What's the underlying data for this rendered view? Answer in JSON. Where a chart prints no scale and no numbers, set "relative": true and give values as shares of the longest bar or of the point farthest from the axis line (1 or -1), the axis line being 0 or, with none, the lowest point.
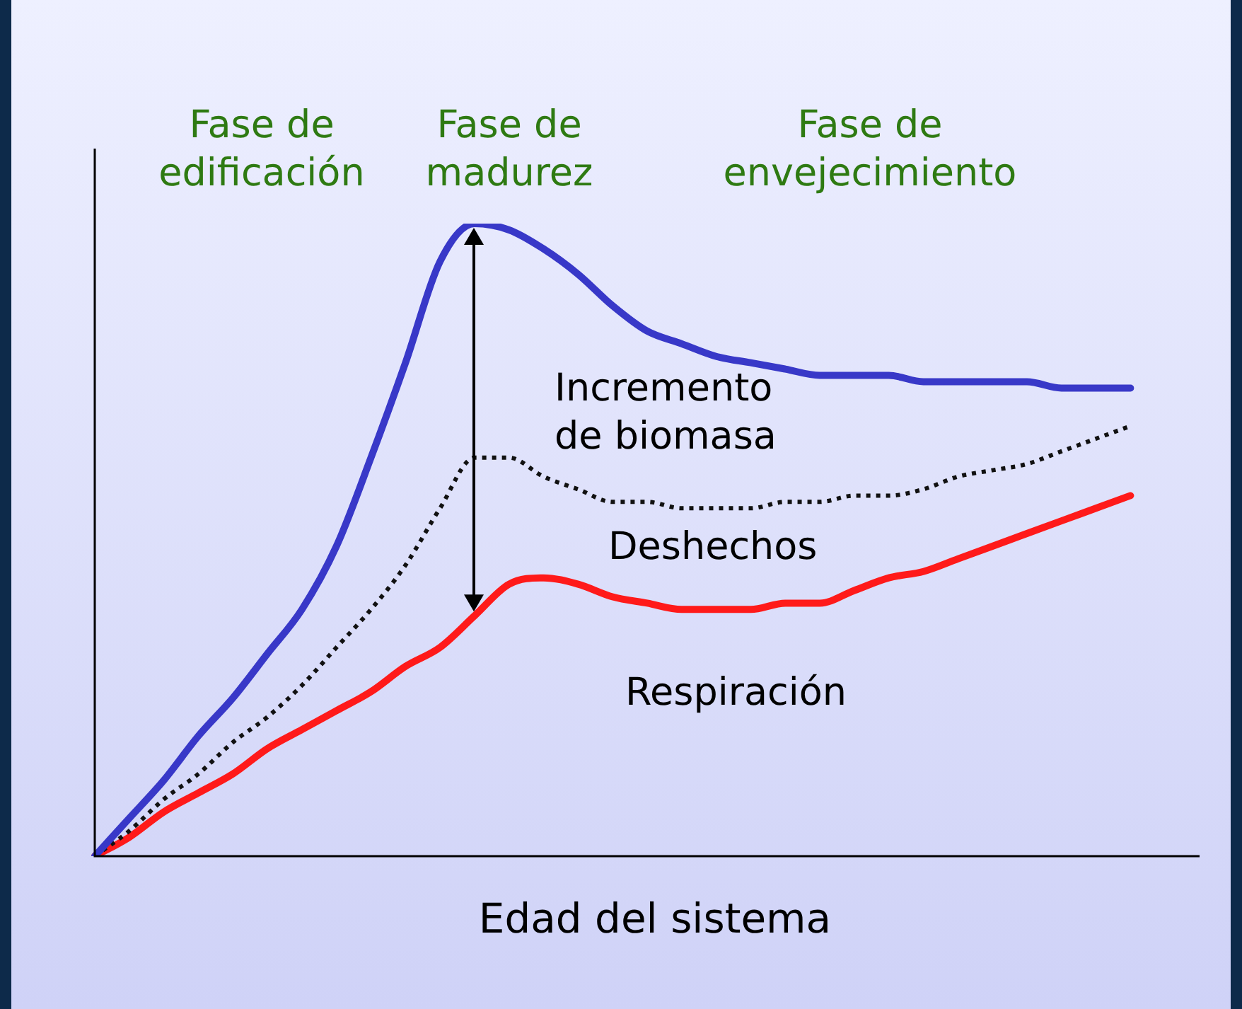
{
  "chart_data": {
    "type": "line",
    "relative": true,
    "xlabel": "Edad del sistema",
    "categories": [
      null,
      null,
      null,
      null,
      null,
      null,
      null,
      null,
      null,
      null,
      null,
      null,
      null,
      null,
      null,
      null,
      null,
      null,
      null,
      null,
      null,
      null,
      null,
      null,
      null,
      null,
      null,
      null,
      null,
      null,
      null,
      null,
      null
    ],
    "series": [
      {
        "color": "#3838c8",
        "line_style": "solid",
        "values": [
          0,
          0.06,
          0.12,
          0.19,
          0.25,
          0.32,
          0.39,
          0.49,
          0.63,
          0.78,
          0.94,
          1.0,
          0.99,
          0.96,
          0.92,
          0.87,
          0.83,
          0.81,
          0.79,
          0.78,
          0.77,
          0.76,
          0.76,
          0.76,
          0.75,
          0.75,
          0.75,
          0.75,
          0.74,
          0.74,
          0.74,
          null,
          null
        ]
      },
      {
        "color": "#111111",
        "line_style": "dotted",
        "values": [
          0,
          0.04,
          0.09,
          0.13,
          0.18,
          0.22,
          0.27,
          0.33,
          0.39,
          0.46,
          0.55,
          0.63,
          0.63,
          0.6,
          0.58,
          0.56,
          0.56,
          0.55,
          0.55,
          0.55,
          0.56,
          0.56,
          0.57,
          0.57,
          0.58,
          0.6,
          0.61,
          0.62,
          0.64,
          0.66,
          0.68,
          null,
          null
        ]
      },
      {
        "color": "#ff1a1a",
        "line_style": "solid",
        "values": [
          0,
          0.03,
          0.07,
          0.1,
          0.13,
          0.17,
          0.2,
          0.23,
          0.26,
          0.3,
          0.33,
          0.38,
          0.43,
          0.44,
          0.43,
          0.41,
          0.4,
          0.39,
          0.39,
          0.39,
          0.4,
          0.4,
          0.42,
          0.44,
          0.45,
          0.47,
          0.49,
          0.51,
          0.53,
          0.55,
          0.57,
          null,
          null
        ]
      }
    ],
    "annotations": [
      "Fase de\nedificación",
      "Fase de\nmadurez",
      "Fase de\nenvejecimiento",
      "Incremento\nde biomasa",
      "Deshechos",
      "Respiración"
    ],
    "legend": false,
    "marker": "none"
  }
}
